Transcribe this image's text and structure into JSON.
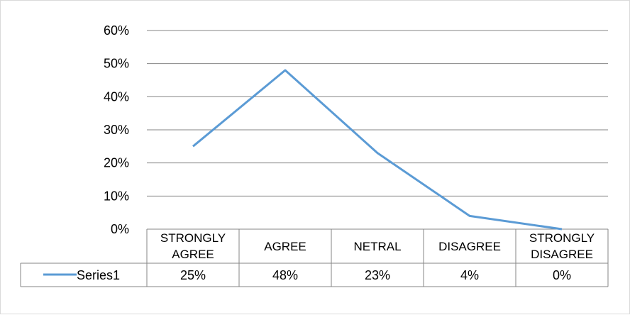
{
  "chart_data": {
    "type": "line",
    "categories": [
      [
        "STRONGLY",
        "AGREE"
      ],
      [
        "AGREE"
      ],
      [
        "NETRAL"
      ],
      [
        "DISAGREE"
      ],
      [
        "STRONGLY",
        "DISAGREE"
      ]
    ],
    "series": [
      {
        "name": "Series1",
        "values": [
          0.25,
          0.48,
          0.23,
          0.04,
          0.0
        ],
        "labels": [
          "25%",
          "48%",
          "23%",
          "4%",
          "0%"
        ],
        "color": "#5B9BD5"
      }
    ],
    "yticks": [
      "0%",
      "10%",
      "20%",
      "30%",
      "40%",
      "50%",
      "60%"
    ],
    "ylim": [
      0,
      0.6
    ],
    "grid": true,
    "legend": "data-table",
    "gridColor": "#868686",
    "tableBorderColor": "#868686"
  }
}
